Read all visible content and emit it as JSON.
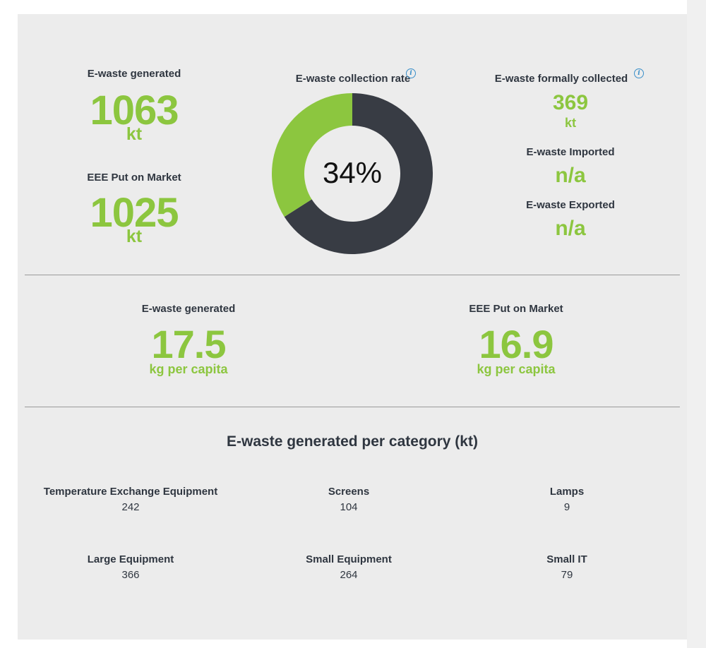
{
  "summary": {
    "generated": {
      "label": "E-waste generated",
      "value": "1063",
      "unit": "kt"
    },
    "put_on_market": {
      "label": "EEE Put on Market",
      "value": "1025",
      "unit": "kt"
    },
    "collection_rate": {
      "label": "E-waste collection rate",
      "value_text": "34%",
      "fraction": 0.34
    },
    "formally_collected": {
      "label": "E-waste formally collected",
      "value": "369",
      "unit": "kt"
    },
    "imported": {
      "label": "E-waste Imported",
      "value": "n/a"
    },
    "exported": {
      "label": "E-waste Exported",
      "value": "n/a"
    }
  },
  "per_capita": {
    "generated": {
      "label": "E-waste generated",
      "value": "17.5",
      "unit": "kg per capita"
    },
    "put_on_market": {
      "label": "EEE Put on Market",
      "value": "16.9",
      "unit": "kg per capita"
    }
  },
  "categories": {
    "title": "E-waste generated per category (kt)",
    "items": [
      {
        "name": "Temperature Exchange Equipment",
        "value": "242"
      },
      {
        "name": "Screens",
        "value": "104"
      },
      {
        "name": "Lamps",
        "value": "9"
      },
      {
        "name": "Large Equipment",
        "value": "366"
      },
      {
        "name": "Small Equipment",
        "value": "264"
      },
      {
        "name": "Small IT",
        "value": "79"
      }
    ]
  },
  "colors": {
    "accent_green": "#8cc63f",
    "dark_slate": "#383c44",
    "panel_bg": "#ececec",
    "info_blue": "#3a8fc9"
  },
  "icons": {
    "info": "info-icon"
  }
}
